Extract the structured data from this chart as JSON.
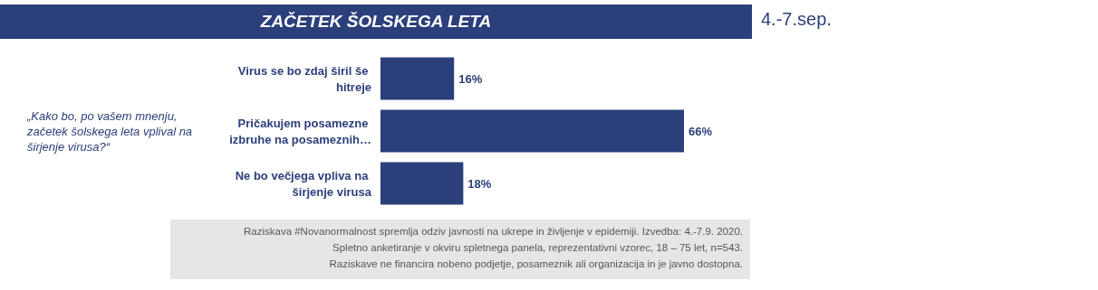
{
  "chart_data": {
    "type": "bar",
    "orientation": "horizontal",
    "title": "ZAČETEK ŠOLSKEGA LETA",
    "subtitle": "4.-7.sep.",
    "categories": [
      "Virus se bo zdaj širil še hitreje",
      "Pričakujem posamezne izbruhe na posameznih…",
      "Ne bo večjega vpliva na širjenje virusa"
    ],
    "values": [
      16,
      66,
      18
    ],
    "color": "#2b3f7a",
    "value_labels": [
      "16%",
      "66%",
      "18%"
    ],
    "annotations": [
      "„Kako bo, po vašem mnenju, začetek šolskega leta vplival na širjenje virusa?“",
      "Raziskava #Novanormalnost spremlja odziv javnosti na ukrepe in življenje v epidemiji. Izvedba: 4.-7.9. 2020.",
      "Spletno anketiranje v okviru spletnega panela, reprezentativni vzorec, 18 – 75 let, n=543.",
      "Raziskave ne financira nobeno podjetje, posameznik ali organizacija in je javno dostopna."
    ]
  }
}
